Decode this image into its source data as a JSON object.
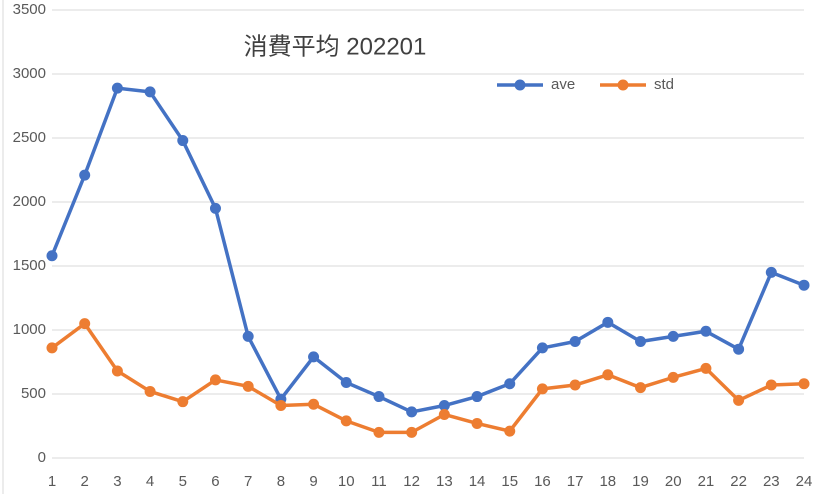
{
  "chart_data": {
    "type": "line",
    "title": "消費平均 202201",
    "categories": [
      "1",
      "2",
      "3",
      "4",
      "5",
      "6",
      "7",
      "8",
      "9",
      "10",
      "11",
      "12",
      "13",
      "14",
      "15",
      "16",
      "17",
      "18",
      "19",
      "20",
      "21",
      "22",
      "23",
      "24"
    ],
    "series": [
      {
        "name": "ave",
        "color": "#4472c4",
        "values": [
          1580,
          2210,
          2890,
          2860,
          2480,
          1950,
          950,
          460,
          790,
          590,
          480,
          360,
          410,
          480,
          580,
          860,
          910,
          1060,
          910,
          950,
          990,
          850,
          1450,
          1350
        ]
      },
      {
        "name": "std",
        "color": "#ed7d31",
        "values": [
          860,
          1050,
          680,
          520,
          440,
          610,
          560,
          410,
          420,
          290,
          200,
          200,
          340,
          270,
          210,
          540,
          570,
          650,
          550,
          630,
          700,
          450,
          570,
          580
        ]
      }
    ],
    "ylim": [
      0,
      3500
    ],
    "yticks": [
      0,
      500,
      1000,
      1500,
      2000,
      2500,
      3000,
      3500
    ],
    "grid": true
  }
}
